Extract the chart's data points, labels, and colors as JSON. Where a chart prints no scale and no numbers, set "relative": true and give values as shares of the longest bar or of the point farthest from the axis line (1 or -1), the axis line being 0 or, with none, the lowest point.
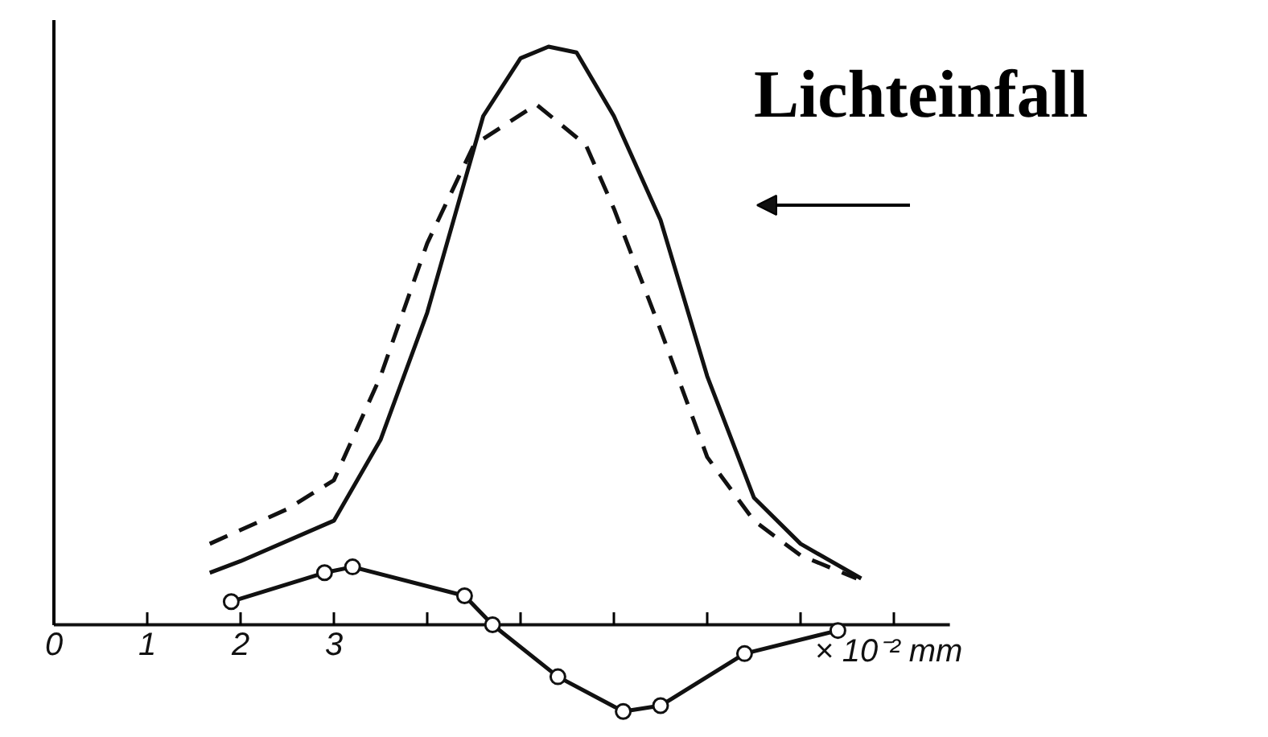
{
  "chart_data": {
    "type": "line",
    "relative": true,
    "xlabel": "× 10⁻² mm",
    "xlim": [
      0,
      9.6
    ],
    "xticks": [
      0,
      1,
      2,
      3,
      {
        "value": 4,
        "label": null
      },
      {
        "value": 5,
        "label": null
      },
      {
        "value": 6,
        "label": null
      },
      {
        "value": 7,
        "label": null
      },
      {
        "value": 8,
        "label": null
      },
      {
        "value": 9,
        "label": null
      }
    ],
    "annotations": [
      "Lichteinfall"
    ],
    "grid": false,
    "series": [
      {
        "color": "#111111",
        "line_style": "solid",
        "marker": "none",
        "x": [
          1.67,
          2,
          3,
          3.5,
          4,
          4.3,
          4.6,
          5,
          5.3,
          5.6,
          6,
          6.5,
          7,
          7.5,
          8,
          8.65
        ],
        "values": [
          0.09,
          0.11,
          0.18,
          0.32,
          0.54,
          0.71,
          0.88,
          0.98,
          1.0,
          0.99,
          0.88,
          0.7,
          0.43,
          0.22,
          0.14,
          0.08
        ]
      },
      {
        "color": "#111111",
        "line_style": "dashed",
        "marker": "none",
        "x": [
          1.67,
          2.5,
          3,
          3.5,
          4,
          4.5,
          5.17,
          5.7,
          6,
          6.5,
          7,
          7.5,
          8,
          8.6
        ],
        "values": [
          0.14,
          0.2,
          0.25,
          0.43,
          0.66,
          0.83,
          0.9,
          0.83,
          0.72,
          0.51,
          0.29,
          0.18,
          0.12,
          0.08
        ]
      },
      {
        "color": "#111111",
        "line_style": "solid",
        "marker": "circle",
        "x": [
          1.9,
          2.9,
          3.2,
          4.4,
          4.7,
          5.4,
          6.1,
          6.5,
          7.4,
          8.4
        ],
        "values": [
          0.04,
          0.09,
          0.1,
          0.05,
          0.0,
          -0.09,
          -0.15,
          -0.14,
          -0.05,
          -0.01
        ]
      }
    ]
  }
}
